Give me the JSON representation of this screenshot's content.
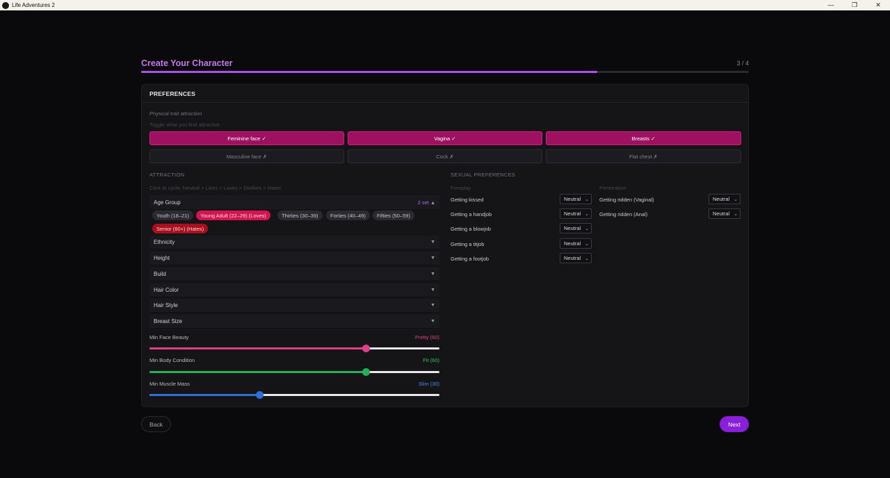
{
  "window": {
    "title": "Life Adventures 2",
    "controls": [
      "—",
      "❐",
      "✕"
    ]
  },
  "header": {
    "title": "Create Your Character",
    "step": "3 / 4",
    "progress": 0.75
  },
  "panel": {
    "title": "PREFERENCES",
    "trait": {
      "label": "Physical trait attraction",
      "hint": "Toggle what you find attractive.",
      "buttons": [
        {
          "label": "Feminine face ✓",
          "selected": true
        },
        {
          "label": "Vagina ✓",
          "selected": true
        },
        {
          "label": "Breasts ✓",
          "selected": true
        },
        {
          "label": "Masculine face ✗",
          "selected": false
        },
        {
          "label": "Cock ✗",
          "selected": false
        },
        {
          "label": "Flat chest ✗",
          "selected": false
        }
      ]
    },
    "attraction": {
      "label": "ATTRACTION",
      "hint": "Click to cycle: Neutral > Likes > Loves > Dislikes > Hates",
      "age_group": {
        "label": "Age Group",
        "count": "2 set",
        "arrow": "▲",
        "chips": [
          {
            "label": "Youth (18–21)",
            "state": "neutral"
          },
          {
            "label": "Young Adult (22–29)  (Loves)",
            "state": "love"
          },
          {
            "label": "Thirties (30–39)",
            "state": "neutral"
          },
          {
            "label": "Forties (40–49)",
            "state": "neutral"
          },
          {
            "label": "Fifties (50–59)",
            "state": "neutral"
          },
          {
            "label": "Senior (60+)  (Hates)",
            "state": "hate"
          }
        ]
      },
      "groups": [
        "Ethnicity",
        "Height",
        "Build",
        "Hair Color",
        "Hair Style",
        "Breast Size"
      ],
      "group_arrow": "▼"
    },
    "sliders": [
      {
        "label": "Min Face Beauty",
        "value_text": "Pretty (60)",
        "value": 0.745,
        "color": "#e0408a",
        "text_color": "#e0408a"
      },
      {
        "label": "Min Body Condition",
        "value_text": "Fit (60)",
        "value": 0.745,
        "color": "#22b05a",
        "text_color": "#2fc46a"
      },
      {
        "label": "Min Muscle Mass",
        "value_text": "Slim (30)",
        "value": 0.38,
        "color": "#2f6fd8",
        "text_color": "#4a8ae8"
      }
    ],
    "sexual": {
      "label": "SEXUAL PREFERENCES",
      "foreplay": {
        "label": "Foreplay",
        "items": [
          {
            "label": "Getting kissed",
            "value": "Neutral"
          },
          {
            "label": "Getting a handjob",
            "value": "Neutral"
          },
          {
            "label": "Getting a blowjob",
            "value": "Neutral"
          },
          {
            "label": "Getting a titjob",
            "value": "Neutral"
          },
          {
            "label": "Getting a footjob",
            "value": "Neutral"
          }
        ]
      },
      "penetration": {
        "label": "Penetration",
        "items": [
          {
            "label": "Getting ridden (Vaginal)",
            "value": "Neutral"
          },
          {
            "label": "Getting ridden (Anal)",
            "value": "Neutral"
          }
        ]
      },
      "chevron": "⌄"
    }
  },
  "footer": {
    "back": "Back",
    "next": "Next"
  }
}
